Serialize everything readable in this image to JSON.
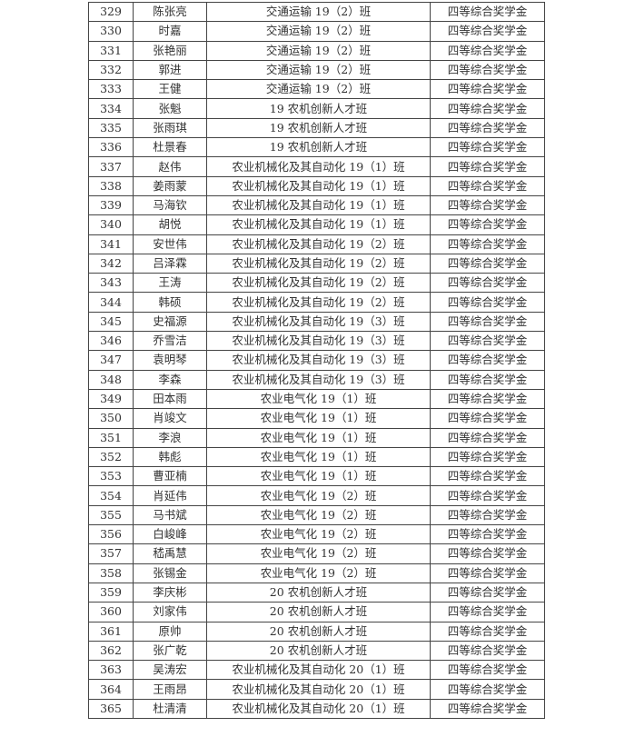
{
  "table": {
    "rows": [
      [
        "329",
        "陈张亮",
        "交通运输 19（2）班",
        "四等综合奖学金"
      ],
      [
        "330",
        "时嘉",
        "交通运输 19（2）班",
        "四等综合奖学金"
      ],
      [
        "331",
        "张艳丽",
        "交通运输 19（2）班",
        "四等综合奖学金"
      ],
      [
        "332",
        "郭进",
        "交通运输 19（2）班",
        "四等综合奖学金"
      ],
      [
        "333",
        "王健",
        "交通运输 19（2）班",
        "四等综合奖学金"
      ],
      [
        "334",
        "张魁",
        "19 农机创新人才班",
        "四等综合奖学金"
      ],
      [
        "335",
        "张雨琪",
        "19 农机创新人才班",
        "四等综合奖学金"
      ],
      [
        "336",
        "杜景春",
        "19 农机创新人才班",
        "四等综合奖学金"
      ],
      [
        "337",
        "赵伟",
        "农业机械化及其自动化 19（1）班",
        "四等综合奖学金"
      ],
      [
        "338",
        "姜雨蒙",
        "农业机械化及其自动化 19（1）班",
        "四等综合奖学金"
      ],
      [
        "339",
        "马海钦",
        "农业机械化及其自动化 19（1）班",
        "四等综合奖学金"
      ],
      [
        "340",
        "胡悦",
        "农业机械化及其自动化 19（1）班",
        "四等综合奖学金"
      ],
      [
        "341",
        "安世伟",
        "农业机械化及其自动化 19（2）班",
        "四等综合奖学金"
      ],
      [
        "342",
        "吕泽霖",
        "农业机械化及其自动化 19（2）班",
        "四等综合奖学金"
      ],
      [
        "343",
        "王涛",
        "农业机械化及其自动化 19（2）班",
        "四等综合奖学金"
      ],
      [
        "344",
        "韩硕",
        "农业机械化及其自动化 19（2）班",
        "四等综合奖学金"
      ],
      [
        "345",
        "史福源",
        "农业机械化及其自动化 19（3）班",
        "四等综合奖学金"
      ],
      [
        "346",
        "乔雪洁",
        "农业机械化及其自动化 19（3）班",
        "四等综合奖学金"
      ],
      [
        "347",
        "袁明琴",
        "农业机械化及其自动化 19（3）班",
        "四等综合奖学金"
      ],
      [
        "348",
        "李森",
        "农业机械化及其自动化 19（3）班",
        "四等综合奖学金"
      ],
      [
        "349",
        "田本雨",
        "农业电气化 19（1）班",
        "四等综合奖学金"
      ],
      [
        "350",
        "肖竣文",
        "农业电气化 19（1）班",
        "四等综合奖学金"
      ],
      [
        "351",
        "李浪",
        "农业电气化 19（1）班",
        "四等综合奖学金"
      ],
      [
        "352",
        "韩彪",
        "农业电气化 19（1）班",
        "四等综合奖学金"
      ],
      [
        "353",
        "曹亚楠",
        "农业电气化 19（1）班",
        "四等综合奖学金"
      ],
      [
        "354",
        "肖延伟",
        "农业电气化 19（2）班",
        "四等综合奖学金"
      ],
      [
        "355",
        "马书斌",
        "农业电气化 19（2）班",
        "四等综合奖学金"
      ],
      [
        "356",
        "白峻峰",
        "农业电气化 19（2）班",
        "四等综合奖学金"
      ],
      [
        "357",
        "嵇禹慧",
        "农业电气化 19（2）班",
        "四等综合奖学金"
      ],
      [
        "358",
        "张锡金",
        "农业电气化 19（2）班",
        "四等综合奖学金"
      ],
      [
        "359",
        "李庆彬",
        "20 农机创新人才班",
        "四等综合奖学金"
      ],
      [
        "360",
        "刘家伟",
        "20 农机创新人才班",
        "四等综合奖学金"
      ],
      [
        "361",
        "原帅",
        "20 农机创新人才班",
        "四等综合奖学金"
      ],
      [
        "362",
        "张广乾",
        "20 农机创新人才班",
        "四等综合奖学金"
      ],
      [
        "363",
        "吴涛宏",
        "农业机械化及其自动化 20（1）班",
        "四等综合奖学金"
      ],
      [
        "364",
        "王雨昂",
        "农业机械化及其自动化 20（1）班",
        "四等综合奖学金"
      ],
      [
        "365",
        "杜清清",
        "农业机械化及其自动化 20（1）班",
        "四等综合奖学金"
      ]
    ]
  }
}
